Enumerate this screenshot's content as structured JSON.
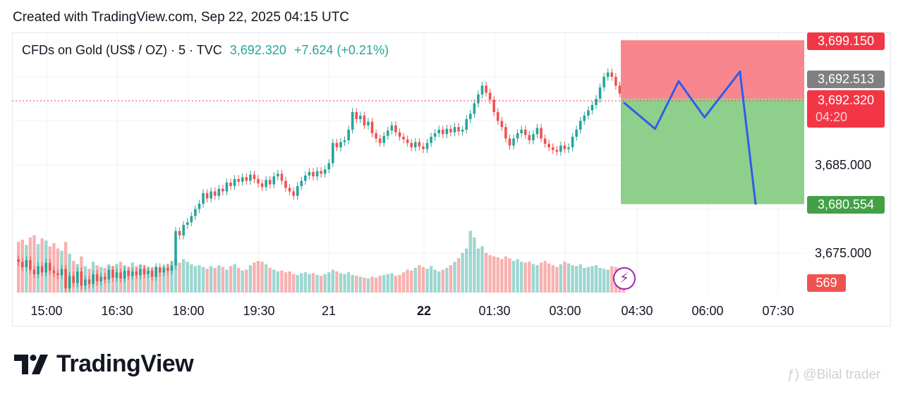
{
  "header": {
    "text": "Created with TradingView.com, Sep 22, 2025 04:15 UTC"
  },
  "legend": {
    "symbol": "CFDs on Gold (US$ / OZ) · 5 · TVC",
    "price": "3,692.320",
    "change": "+7.624 (+0.21%)"
  },
  "price_tags": {
    "stop": "3,699.150",
    "entry": "3,692.513",
    "last": "3,692.320",
    "countdown": "04:20",
    "target": "3,680.554",
    "volume": "569"
  },
  "price_axis": [
    "3,685.000",
    "3,675.000"
  ],
  "time_axis": [
    "15:00",
    "16:30",
    "18:00",
    "19:30",
    "21",
    "22",
    "01:30",
    "03:00",
    "04:30",
    "06:00",
    "07:30"
  ],
  "logo": {
    "text": "TradingView"
  },
  "watermark": {
    "text": "@Bilal trader"
  },
  "colors": {
    "up": "#26a69a",
    "down": "#ef5350",
    "stop_zone": "#f7868f",
    "target_zone": "#8fcf8c",
    "projection": "#2f5de8",
    "entry_tag": "#808080",
    "target_tag": "#43a047",
    "stop_tag": "#f23645"
  },
  "chart_data": {
    "type": "candlestick",
    "interval_minutes": 5,
    "last_bar_time": "04:15",
    "closes": [
      3674.0,
      3673.4,
      3674.2,
      3673.1,
      3672.6,
      3673.5,
      3672.8,
      3673.9,
      3673.0,
      3672.7,
      3672.5,
      3673.2,
      3671.0,
      3672.4,
      3671.6,
      3672.9,
      3671.3,
      3672.0,
      3671.5,
      3672.6,
      3671.8,
      3672.3,
      3672.0,
      3673.1,
      3672.2,
      3672.8,
      3672.1,
      3673.0,
      3672.4,
      3672.9,
      3672.5,
      3673.2,
      3672.6,
      3673.0,
      3672.3,
      3673.4,
      3672.8,
      3673.3,
      3673.0,
      3673.6,
      3677.5,
      3677.0,
      3678.2,
      3678.5,
      3679.2,
      3680.0,
      3680.6,
      3681.8,
      3681.2,
      3682.0,
      3681.5,
      3682.3,
      3682.0,
      3683.0,
      3682.6,
      3683.4,
      3683.1,
      3683.6,
      3683.2,
      3683.9,
      3683.4,
      3682.9,
      3682.5,
      3683.3,
      3682.8,
      3683.7,
      3684.0,
      3683.2,
      3682.4,
      3682.0,
      3681.5,
      3682.6,
      3683.2,
      3683.8,
      3684.2,
      3683.7,
      3684.3,
      3684.0,
      3684.5,
      3685.2,
      3687.5,
      3687.0,
      3687.6,
      3687.8,
      3689.0,
      3691.0,
      3690.2,
      3690.6,
      3689.5,
      3689.9,
      3688.6,
      3688.0,
      3687.5,
      3688.3,
      3688.9,
      3689.5,
      3688.7,
      3688.2,
      3687.9,
      3687.5,
      3687.0,
      3687.6,
      3687.1,
      3686.8,
      3687.5,
      3688.2,
      3688.6,
      3689.0,
      3688.5,
      3689.1,
      3688.7,
      3689.3,
      3688.8,
      3689.0,
      3690.2,
      3690.8,
      3692.0,
      3693.0,
      3694.0,
      3693.2,
      3692.4,
      3691.0,
      3690.0,
      3689.3,
      3688.0,
      3687.2,
      3688.0,
      3688.6,
      3689.0,
      3688.4,
      3687.8,
      3688.5,
      3689.2,
      3688.0,
      3687.4,
      3687.0,
      3686.7,
      3686.5,
      3687.2,
      3686.8,
      3687.0,
      3688.2,
      3689.0,
      3690.0,
      3690.6,
      3691.2,
      3691.8,
      3692.5,
      3693.8,
      3695.0,
      3695.5,
      3695.0,
      3694.0,
      3693.1,
      3692.32
    ],
    "volumes": [
      1150,
      1200,
      1080,
      1250,
      1300,
      1100,
      1230,
      1180,
      1050,
      1120,
      1000,
      950,
      1150,
      880,
      720,
      650,
      820,
      600,
      540,
      700,
      620,
      580,
      560,
      640,
      600,
      650,
      700,
      620,
      580,
      680,
      600,
      640,
      620,
      580,
      560,
      600,
      520,
      610,
      650,
      720,
      780,
      680,
      760,
      700,
      640,
      600,
      620,
      580,
      540,
      600,
      560,
      620,
      580,
      520,
      600,
      640,
      560,
      500,
      520,
      620,
      680,
      720,
      700,
      640,
      560,
      520,
      480,
      500,
      460,
      480,
      420,
      400,
      440,
      460,
      420,
      440,
      400,
      380,
      420,
      460,
      520,
      480,
      440,
      420,
      460,
      400,
      380,
      360,
      340,
      320,
      360,
      340,
      380,
      400,
      420,
      440,
      380,
      400,
      460,
      520,
      500,
      560,
      620,
      580,
      540,
      600,
      520,
      480,
      520,
      560,
      620,
      700,
      780,
      900,
      1000,
      1400,
      1250,
      1000,
      1050,
      900,
      850,
      820,
      800,
      760,
      820,
      780,
      720,
      760,
      700,
      680,
      700,
      650,
      620,
      680,
      720,
      660,
      620,
      580,
      640,
      700,
      660,
      620,
      600,
      640,
      560,
      580,
      600,
      620,
      560,
      540,
      520,
      600,
      580,
      560,
      569
    ],
    "position": {
      "type": "short",
      "entry": 3692.513,
      "stop": 3699.15,
      "target": 3680.554
    },
    "projection": [
      {
        "time": "04:15",
        "price": 3692.1
      },
      {
        "time": "04:55",
        "price": 3689.1
      },
      {
        "time": "05:25",
        "price": 3694.5
      },
      {
        "time": "05:58",
        "price": 3690.4
      },
      {
        "time": "06:43",
        "price": 3695.6
      },
      {
        "time": "07:03",
        "price": 3680.5
      }
    ],
    "ylim": [
      3671,
      3700
    ],
    "grid": true
  }
}
